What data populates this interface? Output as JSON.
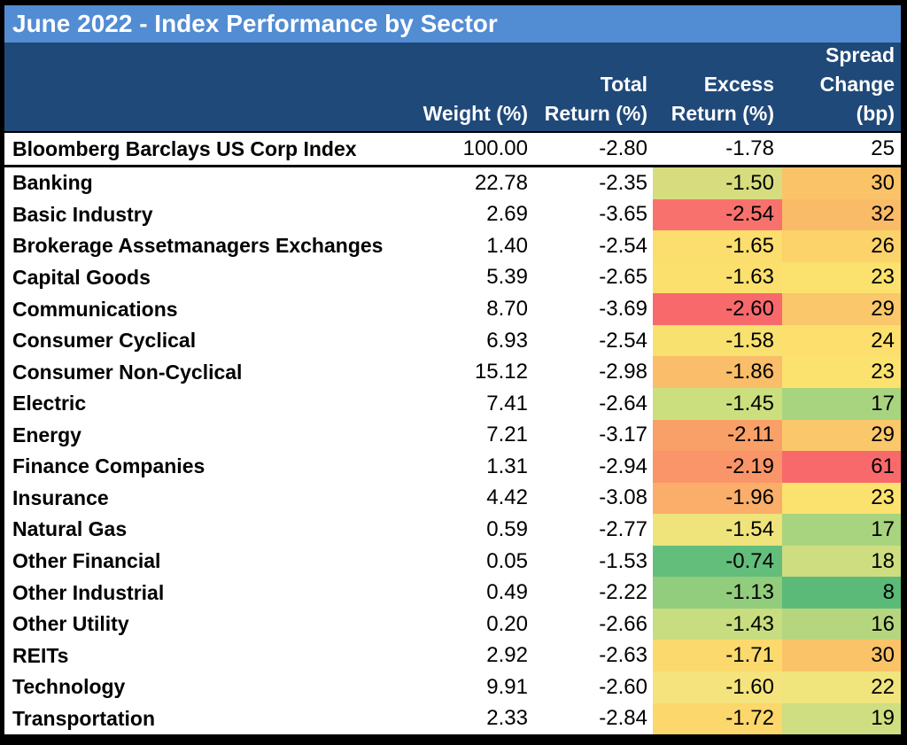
{
  "colors": {
    "title_bg": "#528CD3",
    "header_bg": "#1F4979",
    "header_text": "#FFFFFF",
    "row_bg": "#FFFFFF",
    "border": "#000000",
    "scale_red": "#F8696B",
    "scale_yellow": "#FFEB84",
    "scale_green": "#63BE7B"
  },
  "header": {
    "name": "",
    "weight": [
      "Weight (%)"
    ],
    "total": [
      "Total",
      "Return (%)"
    ],
    "excess": [
      "Excess",
      "Return (%)"
    ],
    "spread": [
      "Spread",
      "Change",
      "(bp)"
    ]
  },
  "chart_data": {
    "type": "table",
    "title": "June 2022 - Index Performance by Sector",
    "columns": [
      "",
      "Weight (%)",
      "Total Return (%)",
      "Excess Return (%)",
      "Spread Change (bp)"
    ],
    "index_row": {
      "name": "Bloomberg Barclays US Corp Index",
      "weight": "100.00",
      "total": "-2.80",
      "excess": "-1.78",
      "spread": "25"
    },
    "rows": [
      {
        "name": "Banking",
        "weight": "22.78",
        "total": "-2.35",
        "excess": "-1.50",
        "spread": "30",
        "excess_color": "#D7DC7E",
        "spread_color": "#FBC368"
      },
      {
        "name": "Basic Industry",
        "weight": "2.69",
        "total": "-3.65",
        "excess": "-2.54",
        "spread": "32",
        "excess_color": "#F8716D",
        "spread_color": "#FABB68"
      },
      {
        "name": "Brokerage Assetmanagers Exchanges",
        "weight": "1.40",
        "total": "-2.54",
        "excess": "-1.65",
        "spread": "26",
        "excess_color": "#FBDE6D",
        "spread_color": "#FCD26B"
      },
      {
        "name": "Capital Goods",
        "weight": "5.39",
        "total": "-2.65",
        "excess": "-1.63",
        "spread": "23",
        "excess_color": "#FBE06D",
        "spread_color": "#FBE26E"
      },
      {
        "name": "Communications",
        "weight": "8.70",
        "total": "-3.69",
        "excess": "-2.60",
        "spread": "29",
        "excess_color": "#F8696B",
        "spread_color": "#FAC76A"
      },
      {
        "name": "Consumer Cyclical",
        "weight": "6.93",
        "total": "-2.54",
        "excess": "-1.58",
        "spread": "24",
        "excess_color": "#F8E16E",
        "spread_color": "#FCDF6D"
      },
      {
        "name": "Consumer Non-Cyclical",
        "weight": "15.12",
        "total": "-2.98",
        "excess": "-1.86",
        "spread": "23",
        "excess_color": "#FABD69",
        "spread_color": "#FBE26E"
      },
      {
        "name": "Electric",
        "weight": "7.41",
        "total": "-2.64",
        "excess": "-1.45",
        "spread": "17",
        "excess_color": "#CCDF7F",
        "spread_color": "#A8D47F"
      },
      {
        "name": "Energy",
        "weight": "7.21",
        "total": "-3.17",
        "excess": "-2.11",
        "spread": "29",
        "excess_color": "#F9A068",
        "spread_color": "#FAC76A"
      },
      {
        "name": "Finance Companies",
        "weight": "1.31",
        "total": "-2.94",
        "excess": "-2.19",
        "spread": "61",
        "excess_color": "#F99568",
        "spread_color": "#F8696B"
      },
      {
        "name": "Insurance",
        "weight": "4.42",
        "total": "-3.08",
        "excess": "-1.96",
        "spread": "23",
        "excess_color": "#FAAE69",
        "spread_color": "#FBE26E"
      },
      {
        "name": "Natural Gas",
        "weight": "0.59",
        "total": "-2.77",
        "excess": "-1.54",
        "spread": "17",
        "excess_color": "#EFE37C",
        "spread_color": "#A8D47F"
      },
      {
        "name": "Other Financial",
        "weight": "0.05",
        "total": "-1.53",
        "excess": "-0.74",
        "spread": "18",
        "excess_color": "#63BE7B",
        "spread_color": "#CFDD81"
      },
      {
        "name": "Other Industrial",
        "weight": "0.49",
        "total": "-2.22",
        "excess": "-1.13",
        "spread": "8",
        "excess_color": "#92CC7D",
        "spread_color": "#5BBA77"
      },
      {
        "name": "Other Utility",
        "weight": "0.20",
        "total": "-2.66",
        "excess": "-1.43",
        "spread": "16",
        "excess_color": "#C8DD7F",
        "spread_color": "#B5D67F"
      },
      {
        "name": "REITs",
        "weight": "2.92",
        "total": "-2.63",
        "excess": "-1.71",
        "spread": "30",
        "excess_color": "#FBD96C",
        "spread_color": "#FBC368"
      },
      {
        "name": "Technology",
        "weight": "9.91",
        "total": "-2.60",
        "excess": "-1.60",
        "spread": "22",
        "excess_color": "#F5E37D",
        "spread_color": "#F0E47C"
      },
      {
        "name": "Transportation",
        "weight": "2.33",
        "total": "-2.84",
        "excess": "-1.72",
        "spread": "19",
        "excess_color": "#FBD76C",
        "spread_color": "#CFDE80"
      }
    ]
  }
}
